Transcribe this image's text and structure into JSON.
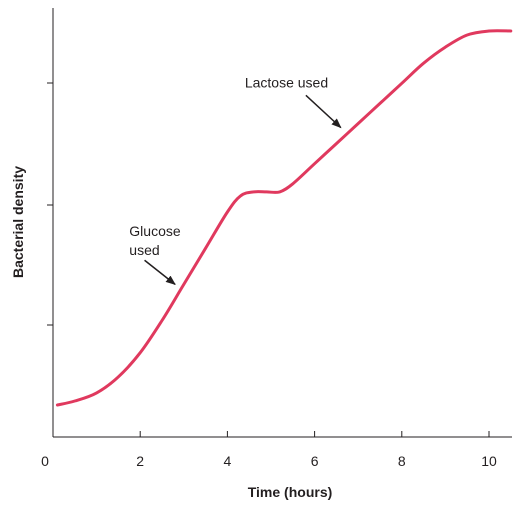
{
  "chart_data": {
    "type": "line",
    "xlabel": "Time (hours)",
    "ylabel": "Bacterial density",
    "xlim": [
      0,
      10.5
    ],
    "ylim": [
      0,
      1
    ],
    "x_ticks": [
      0,
      2,
      4,
      6,
      8,
      10
    ],
    "y_ticks_unlabeled": [
      0.25,
      0.5,
      0.75
    ],
    "grid": false,
    "line_color": "#e0395e",
    "series": [
      {
        "x": [
          0.1,
          0.5,
          1.0,
          1.5,
          2.0,
          2.5,
          3.0,
          3.5,
          4.0,
          4.3,
          4.6,
          4.9,
          5.2,
          5.5,
          6.0,
          6.5,
          7.0,
          7.5,
          8.0,
          8.5,
          9.0,
          9.5,
          10.0,
          10.5
        ],
        "y": [
          0.07,
          0.08,
          0.1,
          0.14,
          0.2,
          0.28,
          0.37,
          0.46,
          0.55,
          0.59,
          0.6,
          0.6,
          0.6,
          0.62,
          0.67,
          0.72,
          0.77,
          0.82,
          0.87,
          0.92,
          0.96,
          0.99,
          1.0,
          1.0
        ]
      }
    ],
    "annotations": [
      {
        "lines": [
          "Glucose",
          "used"
        ],
        "text_x": 1.75,
        "text_y": 0.49,
        "arrow_from": [
          2.1,
          0.43
        ],
        "arrow_to": [
          2.8,
          0.37
        ]
      },
      {
        "lines": [
          "Lactose used"
        ],
        "text_x": 4.4,
        "text_y": 0.86,
        "arrow_from": [
          5.8,
          0.84
        ],
        "arrow_to": [
          6.6,
          0.76
        ]
      }
    ]
  }
}
